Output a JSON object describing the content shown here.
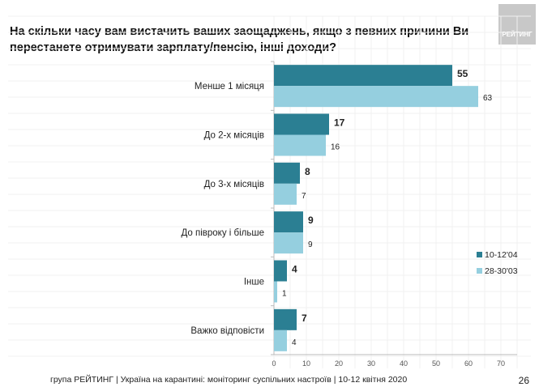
{
  "title": "На скільки часу вам вистачить ваших заощаджень, якщо з певних причини Ви перестанете отримувати зарплату/пенсію, інші доходи?",
  "logo_text": "РЕЙТИНГ",
  "footer": "група РЕЙТИНГ | Україна на карантині: моніторинг суспільних настроїв  | 10-12 квітня  2020",
  "page_number": "26",
  "chart_data": {
    "type": "bar",
    "orientation": "horizontal",
    "categories": [
      "Менше 1 місяця",
      "До 2-х місяців",
      "До 3-х місяців",
      "До півроку і більше",
      "Інше",
      "Важко відповісти"
    ],
    "series": [
      {
        "name": "10-12'04",
        "values": [
          55,
          17,
          8,
          9,
          4,
          7
        ],
        "color": "#2b7f93"
      },
      {
        "name": "28-30'03",
        "values": [
          63,
          16,
          7,
          9,
          1,
          4
        ],
        "color": "#95cfdf"
      }
    ],
    "xlim": [
      0,
      75
    ],
    "xticks": [
      0,
      10,
      20,
      30,
      40,
      50,
      60,
      70
    ],
    "grid": true,
    "legend": "right"
  }
}
